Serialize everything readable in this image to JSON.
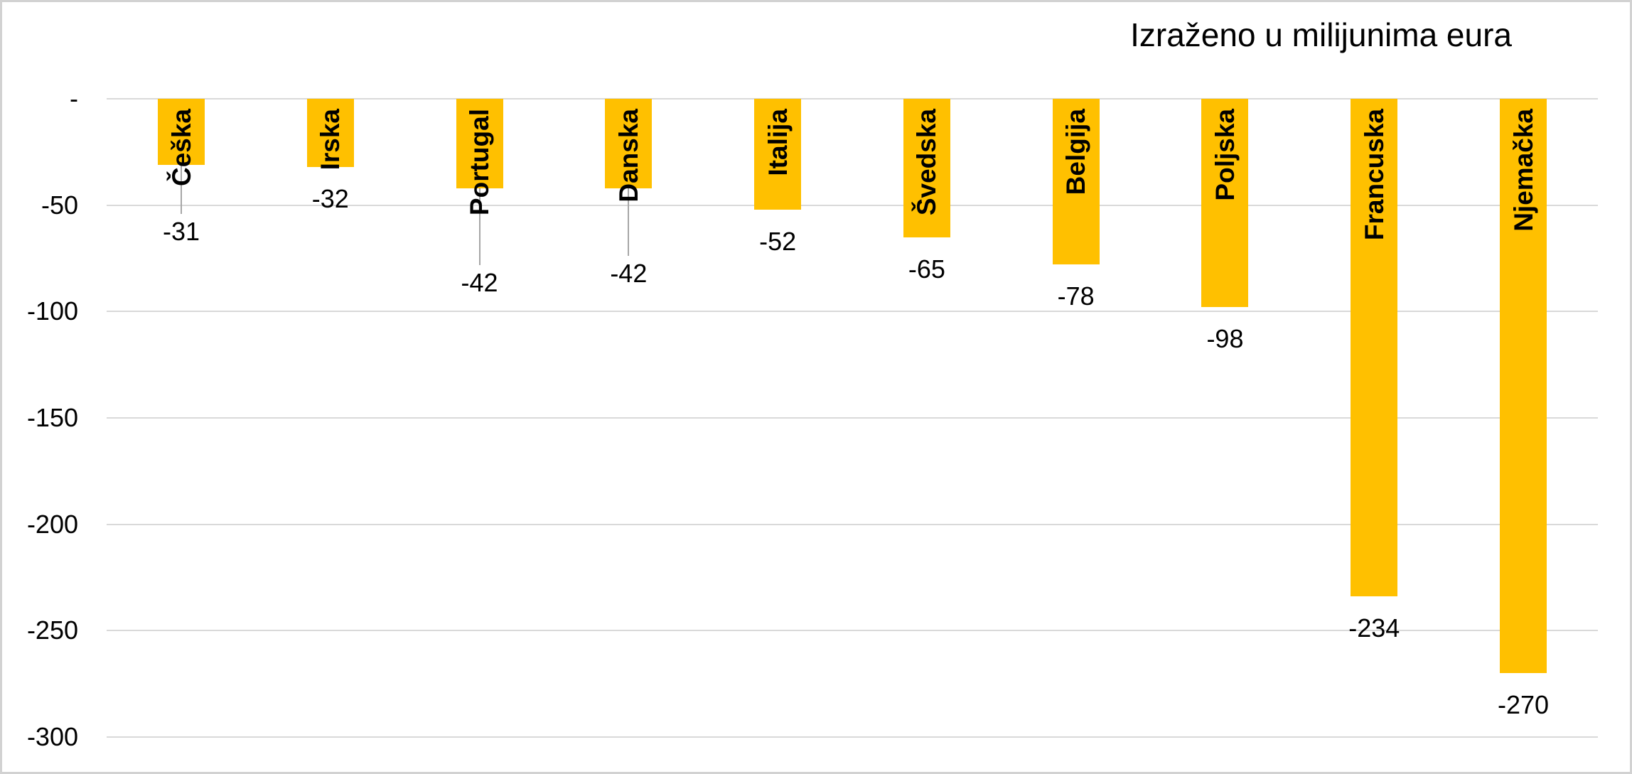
{
  "chart_data": {
    "type": "bar",
    "title": "Izraženo u milijunima eura",
    "orientation": "vertical-negative",
    "categories": [
      "Češka",
      "Irska",
      "Portugal",
      "Danska",
      "Italija",
      "Švedska",
      "Belgija",
      "Poljska",
      "Francuska",
      "Njemačka"
    ],
    "values": [
      -31,
      -32,
      -42,
      -42,
      -52,
      -65,
      -78,
      -98,
      -234,
      -270
    ],
    "data_labels": [
      "-31",
      "-32",
      "-42",
      "-42",
      "-52",
      "-65",
      "-78",
      "-98",
      "-234",
      "-270"
    ],
    "data_label_leader_lines": [
      true,
      false,
      true,
      true,
      false,
      false,
      false,
      false,
      false,
      false
    ],
    "category_label_style": "rotated-bottom-to-top-inside-bar-top",
    "y_axis": {
      "tick_labels": [
        "-",
        "-50",
        "-100",
        "-150",
        "-200",
        "-250",
        "-300"
      ],
      "tick_values": [
        0,
        -50,
        -100,
        -150,
        -200,
        -250,
        -300
      ],
      "range": [
        -300,
        0
      ]
    },
    "x_axis": {
      "label": "",
      "tick_labels_shown": false
    },
    "grid": true,
    "legend": "none",
    "xlabel": "",
    "ylabel": ""
  },
  "colors": {
    "bar_fill": "#ffc000",
    "gridline": "#d9d9d9",
    "leader_line": "#a6a6a6",
    "text": "#000000",
    "background": "#ffffff",
    "border": "#d2d2d2"
  }
}
